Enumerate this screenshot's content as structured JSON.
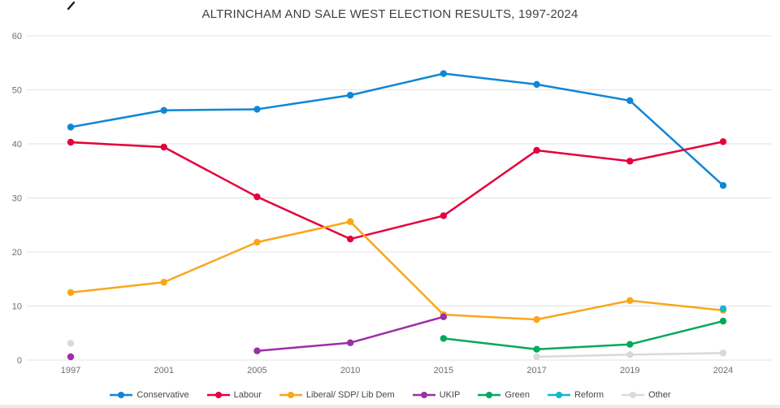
{
  "chart_data": {
    "type": "line",
    "title": "ALTRINCHAM AND SALE WEST ELECTION RESULTS, 1997-2024",
    "categories": [
      "1997",
      "2001",
      "2005",
      "2010",
      "2015",
      "2017",
      "2019",
      "2024"
    ],
    "series": [
      {
        "name": "Conservative",
        "color": "#0f86d6",
        "values": [
          43.1,
          46.2,
          46.4,
          49.0,
          53.0,
          51.0,
          48.0,
          32.3
        ]
      },
      {
        "name": "Labour",
        "color": "#e4003b",
        "values": [
          40.3,
          39.4,
          30.2,
          22.4,
          26.7,
          38.8,
          36.8,
          40.4
        ]
      },
      {
        "name": "Liberal/ SDP/ Lib Dem",
        "color": "#faa61a",
        "values": [
          12.5,
          14.4,
          21.8,
          25.6,
          8.4,
          7.5,
          11.0,
          9.2
        ]
      },
      {
        "name": "UKIP",
        "color": "#9b2fa5",
        "values": [
          0.6,
          null,
          1.7,
          3.2,
          8.0,
          null,
          null,
          null
        ]
      },
      {
        "name": "Green",
        "color": "#02a95b",
        "values": [
          null,
          null,
          null,
          null,
          4.0,
          2.0,
          2.9,
          7.2
        ]
      },
      {
        "name": "Reform",
        "color": "#12b6cf",
        "values": [
          null,
          null,
          null,
          null,
          null,
          null,
          null,
          9.5
        ]
      },
      {
        "name": "Other",
        "color": "#d9d9d9",
        "values": [
          3.1,
          null,
          null,
          null,
          null,
          0.6,
          1.0,
          1.3
        ]
      }
    ],
    "xlabel": "",
    "ylabel": "",
    "ylim": [
      0,
      60
    ],
    "yticks": [
      0,
      10,
      20,
      30,
      40,
      50,
      60
    ],
    "grid": true,
    "legend_position": "bottom"
  }
}
